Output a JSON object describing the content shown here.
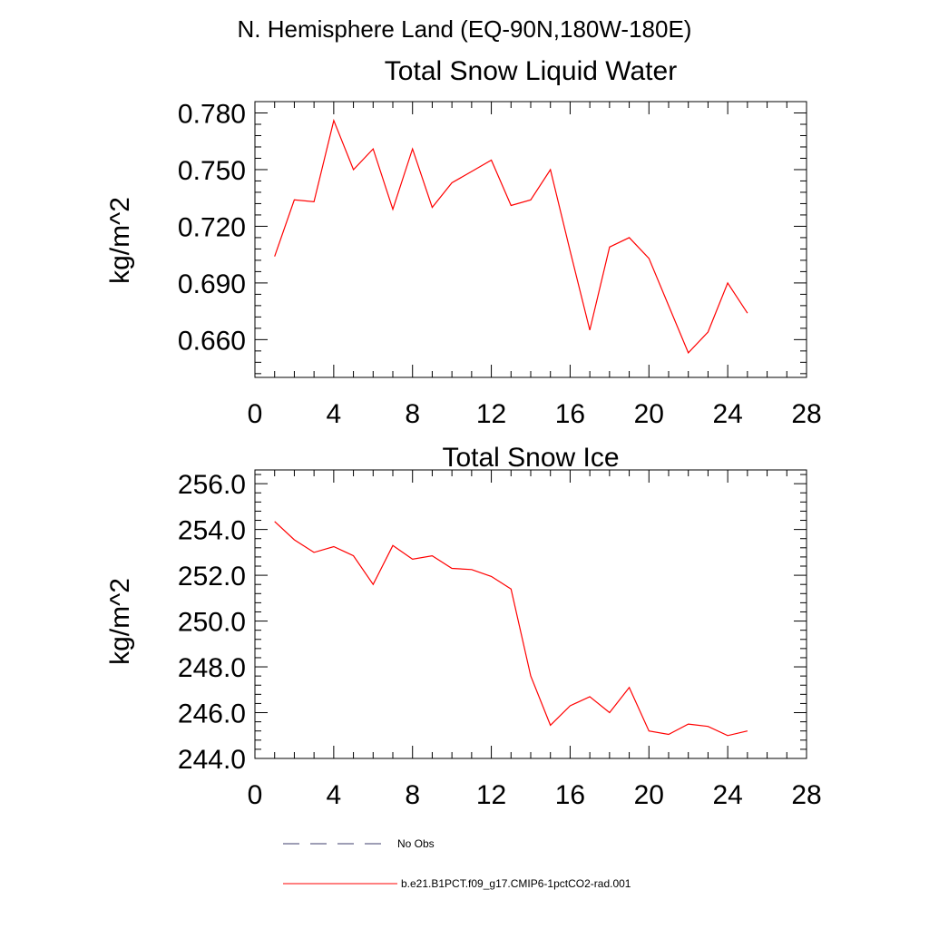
{
  "page_title": "N. Hemisphere Land (EQ-90N,180W-180E)",
  "colors": {
    "model": "#ff0000",
    "obs": "#3d3d6b",
    "axis": "#000000"
  },
  "legend": {
    "obs_label": "No Obs",
    "model_label": "b.e21.B1PCT.f09_g17.CMIP6-1pctCO2-rad.001"
  },
  "chart_data": [
    {
      "type": "line",
      "title": "Total Snow Liquid Water",
      "xlabel": "",
      "ylabel": "kg/m^2",
      "xlim": [
        0,
        28
      ],
      "ylim": [
        0.64,
        0.786
      ],
      "xticks": [
        0,
        4,
        8,
        12,
        16,
        20,
        24,
        28
      ],
      "xtick_labels": [
        "0",
        "4",
        "8",
        "12",
        "16",
        "20",
        "24",
        "28"
      ],
      "yticks": [
        0.66,
        0.69,
        0.72,
        0.75,
        0.78
      ],
      "ytick_labels": [
        "0.660",
        "0.690",
        "0.720",
        "0.750",
        "0.780"
      ],
      "grid": false,
      "series": [
        {
          "name": "b.e21.B1PCT.f09_g17.CMIP6-1pctCO2-rad.001",
          "x": [
            1,
            2,
            3,
            4,
            5,
            6,
            7,
            8,
            9,
            10,
            11,
            12,
            13,
            14,
            15,
            16,
            17,
            18,
            19,
            20,
            21,
            22,
            23,
            24,
            25
          ],
          "y": [
            0.704,
            0.734,
            0.733,
            0.776,
            0.75,
            0.761,
            0.729,
            0.761,
            0.73,
            0.743,
            0.749,
            0.755,
            0.731,
            0.734,
            0.75,
            0.707,
            0.665,
            0.709,
            0.714,
            0.703,
            0.678,
            0.653,
            0.664,
            0.69,
            0.674
          ]
        }
      ]
    },
    {
      "type": "line",
      "title": "Total Snow Ice",
      "xlabel": "",
      "ylabel": "kg/m^2",
      "xlim": [
        0,
        28
      ],
      "ylim": [
        244.0,
        256.6
      ],
      "xticks": [
        0,
        4,
        8,
        12,
        16,
        20,
        24,
        28
      ],
      "xtick_labels": [
        "0",
        "4",
        "8",
        "12",
        "16",
        "20",
        "24",
        "28"
      ],
      "yticks": [
        244,
        246,
        248,
        250,
        252,
        254,
        256
      ],
      "ytick_labels": [
        "244.0",
        "246.0",
        "248.0",
        "250.0",
        "252.0",
        "254.0",
        "256.0"
      ],
      "grid": false,
      "series": [
        {
          "name": "b.e21.B1PCT.f09_g17.CMIP6-1pctCO2-rad.001",
          "x": [
            1,
            2,
            3,
            4,
            5,
            6,
            7,
            8,
            9,
            10,
            11,
            12,
            13,
            14,
            15,
            16,
            17,
            18,
            19,
            20,
            21,
            22,
            23,
            24,
            25
          ],
          "y": [
            254.35,
            253.55,
            253.0,
            253.25,
            252.85,
            251.6,
            253.3,
            252.7,
            252.85,
            252.3,
            252.25,
            251.95,
            251.4,
            247.6,
            245.45,
            246.3,
            246.7,
            246.0,
            247.1,
            245.2,
            245.05,
            245.5,
            245.4,
            245.0,
            245.2
          ]
        }
      ]
    }
  ]
}
